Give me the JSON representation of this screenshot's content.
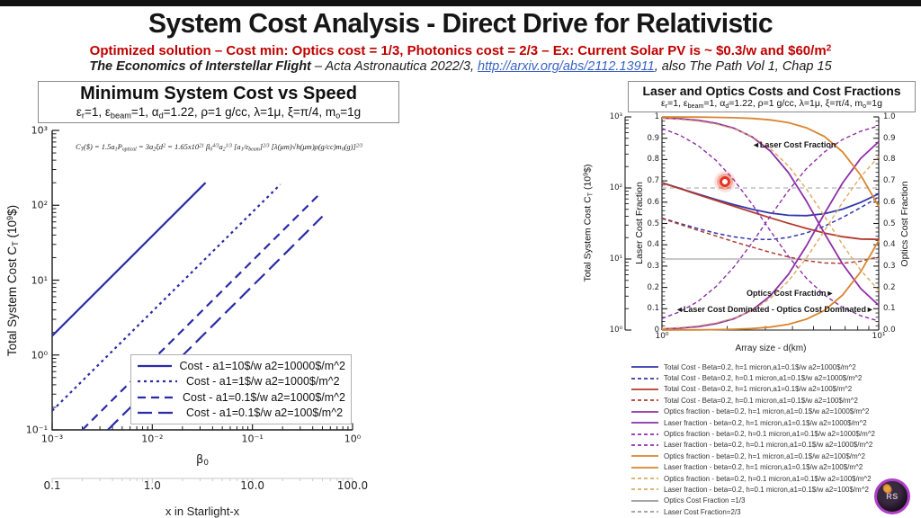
{
  "page": {
    "bg": "#ffffff",
    "top_bar_color": "#121212",
    "laser_pointer_color": "#e33424"
  },
  "header": {
    "title": "System Cost Analysis - Direct Drive for Relativistic",
    "subtitle_tokens": [
      "Optimized solution – Cost min: Optics cost = 1/3, Photonics cost = 2/3 – Ex: Current Solar PV is ~ $0.3/w and $60/m",
      {
        "p": "2"
      }
    ],
    "source": {
      "work": "The Economics of Interstellar Flight",
      "middle": " – Acta Astronautica  2022/3, ",
      "link": "http://arxiv.org/abs/2112.13911",
      "suffix": ", also The Path Vol 1, Chap 15"
    }
  },
  "left_chart": {
    "title": "Minimum System Cost vs Speed",
    "params_tokens": [
      "ε",
      {
        "s": "r"
      },
      "=1, ε",
      {
        "s": "beam"
      },
      "=1, α",
      {
        "s": "d"
      },
      "=1.22, ρ=1 g/cc, λ=1μ, ξ=π/4, m",
      {
        "s": "o"
      },
      "=1g"
    ],
    "equation_tokens": [
      "C",
      {
        "s": "T"
      },
      "($) = 1.5a",
      {
        "s": "1"
      },
      "P",
      {
        "s": "optical"
      },
      " = 3a",
      {
        "s": "2"
      },
      "ξd",
      {
        "p": "2"
      },
      " = 1.65x10",
      {
        "p": "21"
      },
      " β",
      {
        "s": "0"
      },
      {
        "p": "4/3"
      },
      "a",
      {
        "s": "2"
      },
      {
        "p": "1/3"
      },
      " [a",
      {
        "s": "1"
      },
      "/ε",
      {
        "s": "beam"
      },
      "]",
      {
        "p": "2/3"
      },
      " [λ(μm)√h(μm)ρ(g/cc)m",
      {
        "s": "0"
      },
      "(g)]",
      {
        "p": "2/3"
      }
    ],
    "ylabel_tokens": [
      "Total System Cost C",
      {
        "s": "T"
      },
      " (10",
      {
        "p": "9"
      },
      "$)"
    ],
    "xlabel_tokens": [
      "β",
      {
        "s": "0"
      }
    ],
    "x_tick_labels": [
      "10⁻³",
      "10⁻²",
      "10⁻¹",
      "10⁰"
    ],
    "y_tick_labels": [
      "10³",
      "10²",
      "10¹",
      "10⁰",
      "10⁻¹"
    ],
    "axis2_tick_labels": [
      "0.1",
      "1.0",
      "10.0",
      "100.0"
    ],
    "axis2_label": "x in Starlight-x",
    "line_color": "#2a2aa8",
    "legend": [
      {
        "label": "Cost - a1=10$/w a2=10000$/m^2",
        "dash": "solid"
      },
      {
        "label": "Cost - a1=1$/w a2=1000$/m^2",
        "dash": "dot"
      },
      {
        "label": "Cost - a1=0.1$/w a2=1000$/m^2",
        "dash": "dash"
      },
      {
        "label": "Cost - a1=0.1$/w a2=100$/m^2",
        "dash": "longdash"
      }
    ]
  },
  "right_chart": {
    "title": "Laser and Optics Costs and Cost Fractions",
    "params_tokens": [
      "ε",
      {
        "s": "r"
      },
      "=1, ε",
      {
        "s": "beam"
      },
      "=1, α",
      {
        "s": "d"
      },
      "=1.22, ρ=1 g/cc, λ=1μ, ξ=π/4, m",
      {
        "s": "o"
      },
      "=1g"
    ],
    "cost_axis_label_tokens": [
      "Total System Cost C",
      {
        "s": "T"
      },
      " (10",
      {
        "p": "9"
      },
      "$)"
    ],
    "laser_axis_label": "Laser Cost Fraction",
    "optics_axis_label": "Optics Cost Fraction",
    "xlabel": "Array size - d(km)",
    "x_tick_labels": [
      "10⁰",
      "10¹"
    ],
    "cost_tick_labels": [
      "10³",
      "10²",
      "10¹",
      "10⁰"
    ],
    "laser_tick_labels": [
      "1",
      "0.9",
      "0.8",
      "0.7",
      "0.6",
      "0.5",
      "0.4",
      "0.3",
      "0.2",
      "0.1",
      "0"
    ],
    "optics_tick_labels": [
      "1.0",
      "0.9",
      "0.8",
      "0.7",
      "0.6",
      "0.5",
      "0.4",
      "0.3",
      "0.2",
      "0.1",
      "0.0"
    ],
    "annotations": {
      "laser": "◄Laser Cost Fraction",
      "optics": "Optics Cost Fraction►",
      "dominated": "◄Laser Cost Dominated - Optics Cost Dominated►"
    },
    "colors": {
      "blue": "#3036ac",
      "red": "#b23b2d",
      "purple": "#8d2fa8",
      "orange": "#d9862f",
      "orange_light": "#dca963",
      "gray": "#9a9a9a"
    },
    "legend": [
      {
        "label": "Total Cost - Beta=0.2, h=1 micron,a1=0.1$/w a2=1000$/m^2",
        "color": "blue",
        "dashed": false
      },
      {
        "label": "Total Cost - Beta=0.2, h=0.1 micron,a1=0.1$/w a2=1000$/m^2",
        "color": "blue",
        "dashed": true
      },
      {
        "label": "Total Cost - Beta=0.2, h=1 micron,a1=0.1$/w a2=100$/m^2",
        "color": "red",
        "dashed": false
      },
      {
        "label": "Total Cost - Beta=0.2, h=0.1 micron,a1=0.1$/w a2=100$/m^2",
        "color": "red",
        "dashed": true
      },
      {
        "label": "Optics fraction - beta=0.2, h=1 micron,a1=0.1$/w a2=1000$/m^2",
        "color": "purple",
        "dashed": false
      },
      {
        "label": "Laser fraction - beta=0.2, h=1 micron,a1=0.1$/w a2=1000$/m^2",
        "color": "purple",
        "dashed": false
      },
      {
        "label": "Optics fraction - beta=0.2, h=0.1 micron,a1=0.1$/w a2=1000$/m^2",
        "color": "purple",
        "dashed": true
      },
      {
        "label": "Laser fraction - beta=0.2, h=0.1 micron,a1=0.1$/w a2=1000$/m^2",
        "color": "purple",
        "dashed": true
      },
      {
        "label": "Optics fraction - beta=0.2, h=1 micron,a1=0.1$/w a2=100$/m^2",
        "color": "orange",
        "dashed": false
      },
      {
        "label": "Laser fraction - beta=0.2, h=1 micron,a1=0.1$/w a2=100$/m^2",
        "color": "orange",
        "dashed": false
      },
      {
        "label": "Optics fraction - beta=0.2, h=0.1 micron,a1=0.1$/w a2=100$/m^2",
        "color": "orange_light",
        "dashed": true
      },
      {
        "label": "Laser fraction - beta=0.2, h=0.1 micron,a1=0.1$/w a2=100$/m^2",
        "color": "orange_light",
        "dashed": true
      },
      {
        "label": "Optics Cost Fraction =1/3",
        "color": "gray",
        "dashed": false
      },
      {
        "label": "Laser Cost Fraction=2/3",
        "color": "gray",
        "dashed": true
      }
    ]
  },
  "chart_data": [
    {
      "id": "min_system_cost_vs_speed",
      "type": "line",
      "title": "Minimum System Cost vs Speed",
      "xlabel": "β0",
      "ylabel": "Total System Cost C_T (10^9 $)",
      "xscale": "log",
      "yscale": "log",
      "xlim": [
        0.001,
        1
      ],
      "ylim": [
        0.1,
        1000
      ],
      "grid": false,
      "legend_position": "lower-right",
      "secondary_xaxis": {
        "label": "x in Starlight-x",
        "ticks": [
          0.1,
          1.0,
          10.0,
          100.0
        ]
      },
      "series": [
        {
          "name": "Cost - a1=10$/w a2=10000$/m^2",
          "dash": "solid",
          "x": [
            0.001,
            0.034
          ],
          "y": [
            1.8,
            200
          ]
        },
        {
          "name": "Cost - a1=1$/w a2=1000$/m^2",
          "dash": "dot",
          "x": [
            0.001,
            0.19
          ],
          "y": [
            0.18,
            190
          ]
        },
        {
          "name": "Cost - a1=0.1$/w a2=1000$/m^2",
          "dash": "dash",
          "x": [
            0.002,
            0.46
          ],
          "y": [
            0.1,
            138
          ]
        },
        {
          "name": "Cost - a1=0.1$/w a2=100$/m^2",
          "dash": "longdash",
          "x": [
            0.0036,
            0.5
          ],
          "y": [
            0.1,
            71
          ]
        }
      ]
    },
    {
      "id": "laser_optics_costs_fractions",
      "type": "line",
      "title": "Laser and Optics Costs and Cost Fractions",
      "xlabel": "Array size - d(km)",
      "xscale": "log",
      "xlim": [
        1,
        10
      ],
      "cost_axis": {
        "label": "Total System Cost C_T (10^9 $)",
        "scale": "log",
        "lim": [
          1,
          1000
        ]
      },
      "laser_fraction_axis": {
        "label": "Laser Cost Fraction",
        "lim": [
          0,
          1
        ]
      },
      "optics_fraction_axis": {
        "label": "Optics Cost Fraction",
        "lim": [
          0,
          1
        ]
      },
      "d": [
        1,
        1.21,
        1.47,
        1.78,
        2.15,
        2.61,
        3.16,
        3.83,
        4.64,
        5.62,
        6.81,
        8.25,
        10
      ],
      "cost_series": [
        {
          "name": "Total Cost - Beta=0.2, h=1 micron, a1=0.1$/w a2=1000$/m^2",
          "color": "blue",
          "dashed": false,
          "values": [
            118.7,
            98.6,
            81.8,
            68.5,
            58.2,
            50.0,
            44.4,
            41.2,
            40.7,
            43.4,
            50.2,
            62.6,
            82.8
          ]
        },
        {
          "name": "Total Cost - Beta=0.2, h=0.1 micron, a1=0.1$/w a2=1000$/m^2",
          "color": "blue",
          "dashed": true,
          "values": [
            37.7,
            31.6,
            26.7,
            23.0,
            20.5,
            19.0,
            18.8,
            20.1,
            23.3,
            29.0,
            38.4,
            52.8,
            74.7
          ]
        },
        {
          "name": "Total Cost - Beta=0.2, h=1 micron, a1=0.1$/w a2=100$/m^2",
          "color": "red",
          "dashed": false,
          "values": [
            118.1,
            97.6,
            80.4,
            66.5,
            55.2,
            45.7,
            38.0,
            31.8,
            26.9,
            23.2,
            20.6,
            19.1,
            18.9
          ]
        },
        {
          "name": "Total Cost - Beta=0.2, h=0.1 micron, a1=0.1$/w a2=100$/m^2",
          "color": "red",
          "dashed": true,
          "values": [
            37.1,
            30.7,
            25.3,
            21.0,
            17.5,
            14.7,
            12.4,
            10.7,
            9.5,
            8.8,
            8.7,
            9.3,
            10.8
          ]
        }
      ],
      "fraction_series": [
        {
          "name": "Laser/Optics fraction - beta=0.2, h=1 micron, a2=1000$/m^2",
          "color": "purple",
          "dashed": false,
          "laser": [
            0.995,
            0.991,
            0.984,
            0.97,
            0.947,
            0.906,
            0.84,
            0.739,
            0.605,
            0.453,
            0.31,
            0.195,
            0.116
          ]
        },
        {
          "name": "Laser/Optics fraction - beta=0.2, h=0.1 micron, a2=1000$/m^2",
          "color": "purple",
          "dashed": true,
          "laser": [
            0.946,
            0.914,
            0.865,
            0.795,
            0.704,
            0.59,
            0.466,
            0.346,
            0.243,
            0.164,
            0.106,
            0.067,
            0.042
          ]
        },
        {
          "name": "Laser/Optics fraction - beta=0.2, h=1 micron, a2=100$/m^2",
          "color": "orange",
          "dashed": false,
          "laser": [
            1.0,
            0.999,
            0.999,
            0.998,
            0.996,
            0.993,
            0.986,
            0.973,
            0.949,
            0.908,
            0.836,
            0.727,
            0.58
          ]
        },
        {
          "name": "Laser/Optics fraction - beta=0.2, h=0.1 micron, a2=100$/m^2",
          "color": "orange_light",
          "dashed": true,
          "laser": [
            0.993,
            0.988,
            0.98,
            0.966,
            0.944,
            0.908,
            0.852,
            0.77,
            0.662,
            0.534,
            0.401,
            0.281,
            0.186
          ]
        }
      ],
      "reference_lines": [
        {
          "label": "Optics Cost Fraction =1/3",
          "value": 0.3333,
          "dashed": false
        },
        {
          "label": "Laser Cost Fraction=2/3",
          "value": 0.6667,
          "dashed": true
        }
      ]
    }
  ],
  "logo": {
    "text": "RS"
  }
}
